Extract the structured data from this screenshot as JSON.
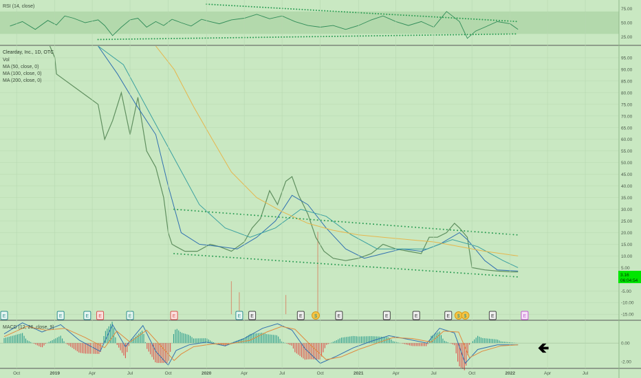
{
  "chart_data": [
    {
      "pane": "rsi",
      "type": "line",
      "title": "RSI (14, close)",
      "ylim": [
        12,
        88
      ],
      "y_ticks": [
        "75.00",
        "50.00",
        "25.00"
      ],
      "y_tick_values": [
        75,
        50,
        25
      ],
      "band": [
        30,
        70
      ],
      "series": [
        {
          "color": "#2e8b57",
          "x": [
            "2018-09-15",
            "2018-10-15",
            "2018-11-15",
            "2018-12-15",
            "2019-01-05",
            "2019-01-25",
            "2019-02-15",
            "2019-03-15",
            "2019-04-15",
            "2019-05-01",
            "2019-05-20",
            "2019-06-10",
            "2019-07-01",
            "2019-07-20",
            "2019-08-10",
            "2019-09-01",
            "2019-09-20",
            "2019-10-10",
            "2019-11-01",
            "2019-11-25",
            "2019-12-20",
            "2020-01-10",
            "2020-02-01",
            "2020-03-01",
            "2020-04-01",
            "2020-05-01",
            "2020-06-01",
            "2020-07-01",
            "2020-08-01",
            "2020-09-01",
            "2020-10-01",
            "2020-11-01",
            "2020-12-01",
            "2021-01-01",
            "2021-02-01",
            "2021-03-01",
            "2021-04-01",
            "2021-05-01",
            "2021-06-01",
            "2021-07-01",
            "2021-08-01",
            "2021-09-01",
            "2021-09-20",
            "2021-10-10",
            "2021-11-01",
            "2021-12-01",
            "2022-01-01",
            "2022-01-20"
          ],
          "values": [
            44,
            52,
            38,
            54,
            46,
            62,
            58,
            50,
            55,
            45,
            27,
            42,
            55,
            58,
            42,
            52,
            45,
            56,
            50,
            44,
            56,
            52,
            48,
            55,
            58,
            65,
            57,
            62,
            52,
            45,
            42,
            45,
            38,
            45,
            55,
            62,
            52,
            45,
            52,
            42,
            70,
            52,
            22,
            35,
            42,
            52,
            48,
            38
          ]
        }
      ],
      "annotations": [
        {
          "type": "dotted-trendline",
          "points": [
            [
              "2020-01-01",
              83
            ],
            [
              "2022-01-20",
              52
            ]
          ]
        },
        {
          "type": "dotted-trendline",
          "points": [
            [
              "2019-04-15",
              20
            ],
            [
              "2022-01-20",
              30
            ]
          ]
        }
      ]
    },
    {
      "pane": "price",
      "type": "line",
      "title": "Clearday, Inc., 1D, OTC",
      "legend": [
        "Vol",
        "MA (50, close, 0)",
        "MA (100, close, 0)",
        "MA (200, close, 0)"
      ],
      "ylim": [
        -17,
        100
      ],
      "y_ticks": [
        "95.00",
        "90.00",
        "85.00",
        "80.00",
        "75.00",
        "70.00",
        "65.00",
        "60.00",
        "55.00",
        "50.00",
        "45.00",
        "40.00",
        "35.00",
        "30.00",
        "25.00",
        "20.00",
        "15.00",
        "10.00",
        "5.00",
        "-5.00",
        "-10.00",
        "-15.00"
      ],
      "y_tick_values": [
        95,
        90,
        85,
        80,
        75,
        70,
        65,
        60,
        55,
        50,
        45,
        40,
        35,
        30,
        25,
        20,
        15,
        10,
        5,
        -5,
        -10,
        -15
      ],
      "last_price_label": "3.16",
      "countdown_label": "06:04:54",
      "last_price": 3.16,
      "series": [
        {
          "name": "Clearday, Inc.",
          "color": "#5f8f5f",
          "x": [
            "2018-12-20",
            "2019-01-01",
            "2019-01-05",
            "2019-04-15",
            "2019-05-01",
            "2019-05-20",
            "2019-06-10",
            "2019-07-01",
            "2019-07-20",
            "2019-08-10",
            "2019-09-01",
            "2019-09-20",
            "2019-10-01",
            "2019-10-10",
            "2019-10-20",
            "2019-11-10",
            "2019-12-10",
            "2020-01-10",
            "2020-02-01",
            "2020-03-01",
            "2020-04-01",
            "2020-04-20",
            "2020-05-10",
            "2020-06-01",
            "2020-06-20",
            "2020-07-10",
            "2020-07-25",
            "2020-08-10",
            "2020-09-01",
            "2020-09-20",
            "2020-10-10",
            "2020-11-01",
            "2020-12-01",
            "2021-01-01",
            "2021-02-01",
            "2021-03-01",
            "2021-04-01",
            "2021-05-01",
            "2021-06-01",
            "2021-06-20",
            "2021-07-10",
            "2021-08-01",
            "2021-08-20",
            "2021-09-01",
            "2021-09-20",
            "2021-10-01",
            "2021-11-01",
            "2021-12-01",
            "2022-01-01",
            "2022-01-20"
          ],
          "values": [
            100,
            95,
            88,
            75,
            60,
            68,
            80,
            62,
            78,
            55,
            48,
            35,
            20,
            15,
            14,
            12,
            12,
            15,
            14,
            12,
            16,
            22,
            26,
            38,
            32,
            42,
            44,
            36,
            28,
            18,
            12,
            9,
            8,
            9,
            11,
            15,
            13,
            12,
            11,
            18,
            18,
            20,
            24,
            22,
            18,
            5,
            4,
            3.5,
            3.2,
            3.16
          ]
        },
        {
          "name": "MA (50, close, 0)",
          "color": "#2f6fb0",
          "x": [
            "2019-04-15",
            "2019-06-01",
            "2019-07-15",
            "2019-09-01",
            "2019-10-01",
            "2019-11-01",
            "2019-12-15",
            "2020-02-01",
            "2020-03-15",
            "2020-05-01",
            "2020-06-15",
            "2020-07-25",
            "2020-09-01",
            "2020-10-15",
            "2020-12-01",
            "2021-01-15",
            "2021-03-01",
            "2021-04-15",
            "2021-06-01",
            "2021-07-15",
            "2021-09-01",
            "2021-09-20",
            "2021-11-01",
            "2021-12-01",
            "2022-01-20"
          ],
          "values": [
            100,
            88,
            75,
            62,
            40,
            20,
            15,
            14,
            13,
            18,
            25,
            36,
            32,
            22,
            13,
            9,
            11,
            13,
            12,
            15,
            20,
            17,
            8,
            4,
            3.5
          ]
        },
        {
          "name": "MA (100, close, 0)",
          "color": "#3aa0a0",
          "x": [
            "2019-04-15",
            "2019-06-15",
            "2019-08-15",
            "2019-10-15",
            "2019-12-15",
            "2020-02-15",
            "2020-04-15",
            "2020-06-15",
            "2020-08-15",
            "2020-10-15",
            "2020-12-15",
            "2021-02-15",
            "2021-04-15",
            "2021-06-15",
            "2021-08-15",
            "2021-10-15",
            "2021-12-15",
            "2022-01-20"
          ],
          "values": [
            100,
            92,
            72,
            52,
            32,
            22,
            18,
            22,
            30,
            27,
            19,
            13,
            13,
            13,
            17,
            14,
            8,
            5
          ]
        },
        {
          "name": "MA (200, close, 0)",
          "color": "#e6b64c",
          "x": [
            "2019-09-01",
            "2019-10-15",
            "2019-12-01",
            "2020-01-15",
            "2020-03-01",
            "2020-05-01",
            "2020-07-01",
            "2020-09-01",
            "2020-11-01",
            "2021-01-01",
            "2021-03-01",
            "2021-05-01",
            "2021-07-01",
            "2021-09-01",
            "2021-11-01",
            "2022-01-20"
          ],
          "values": [
            100,
            90,
            74,
            60,
            46,
            35,
            29,
            24,
            21,
            19,
            18,
            17,
            16,
            14,
            12,
            10
          ]
        }
      ],
      "annotations": [
        {
          "type": "dotted-trendline",
          "points": [
            [
              "2019-10-15",
              30
            ],
            [
              "2022-01-20",
              19
            ]
          ]
        },
        {
          "type": "dotted-trendline",
          "points": [
            [
              "2019-10-15",
              11
            ],
            [
              "2022-01-20",
              1
            ]
          ]
        }
      ],
      "volume_spikes": [
        {
          "x": "2020-03-01",
          "value": 60
        },
        {
          "x": "2020-03-20",
          "value": 40
        },
        {
          "x": "2020-07-10",
          "value": 35
        },
        {
          "x": "2020-09-25",
          "value": 150
        }
      ],
      "event_markers": [
        {
          "x": "2018-09-01",
          "label": "E",
          "kind": "earnings"
        },
        {
          "x": "2019-01-15",
          "label": "E",
          "kind": "earnings"
        },
        {
          "x": "2019-03-20",
          "label": "E",
          "kind": "earnings"
        },
        {
          "x": "2019-04-20",
          "label": "E",
          "kind": "earnings-red"
        },
        {
          "x": "2019-07-01",
          "label": "E",
          "kind": "earnings"
        },
        {
          "x": "2019-10-15",
          "label": "E",
          "kind": "earnings-red"
        },
        {
          "x": "2020-03-20",
          "label": "E",
          "kind": "earnings"
        },
        {
          "x": "2020-04-20",
          "label": "E",
          "kind": "earnings-dark"
        },
        {
          "x": "2020-08-15",
          "label": "E",
          "kind": "earnings-dark"
        },
        {
          "x": "2020-09-20",
          "label": "$",
          "kind": "dividend"
        },
        {
          "x": "2020-11-15",
          "label": "E",
          "kind": "earnings-dark"
        },
        {
          "x": "2021-03-10",
          "label": "E",
          "kind": "earnings-dark"
        },
        {
          "x": "2021-05-20",
          "label": "E",
          "kind": "earnings-dark"
        },
        {
          "x": "2021-08-05",
          "label": "E",
          "kind": "earnings-dark"
        },
        {
          "x": "2021-08-30",
          "label": "$",
          "kind": "dividend"
        },
        {
          "x": "2021-09-15",
          "label": "$",
          "kind": "dividend"
        },
        {
          "x": "2021-11-20",
          "label": "E",
          "kind": "earnings-dark"
        },
        {
          "x": "2022-02-05",
          "label": "E",
          "kind": "earnings-pink"
        }
      ]
    },
    {
      "pane": "macd",
      "type": "line",
      "title": "MACD (12, 26, close, 9)",
      "ylim": [
        -2.6,
        2.4
      ],
      "y_ticks": [
        "0.00",
        "-2.00"
      ],
      "y_tick_values": [
        0,
        -2
      ],
      "series": [
        {
          "color": "#2f6fb0",
          "x": [
            "2018-09-01",
            "2018-10-15",
            "2018-12-01",
            "2019-01-15",
            "2019-03-01",
            "2019-04-20",
            "2019-05-20",
            "2019-06-20",
            "2019-08-01",
            "2019-09-01",
            "2019-10-01",
            "2019-10-20",
            "2019-11-20",
            "2020-01-01",
            "2020-02-15",
            "2020-04-01",
            "2020-05-15",
            "2020-06-20",
            "2020-07-25",
            "2020-08-25",
            "2020-10-01",
            "2020-11-10",
            "2020-12-20",
            "2021-02-01",
            "2021-03-15",
            "2021-05-01",
            "2021-06-15",
            "2021-07-15",
            "2021-08-20",
            "2021-09-15",
            "2021-10-15",
            "2021-12-01",
            "2022-01-20"
          ],
          "values": [
            1.0,
            2.2,
            1.2,
            2.0,
            0.3,
            -0.9,
            2.0,
            -0.4,
            1.9,
            -0.9,
            -2.4,
            -0.8,
            -0.2,
            0.1,
            -0.3,
            0.5,
            1.6,
            2.1,
            1.4,
            -0.6,
            -2.2,
            -1.4,
            -0.5,
            0.2,
            0.8,
            0.4,
            0.0,
            1.6,
            1.1,
            -2.2,
            -0.7,
            -0.2,
            -0.2
          ]
        },
        {
          "color": "#e08a3c",
          "x": [
            "2018-09-01",
            "2018-10-25",
            "2018-12-10",
            "2019-01-25",
            "2019-03-15",
            "2019-05-01",
            "2019-05-30",
            "2019-07-01",
            "2019-08-10",
            "2019-09-15",
            "2019-10-15",
            "2019-11-01",
            "2019-12-01",
            "2020-01-15",
            "2020-02-25",
            "2020-04-15",
            "2020-05-25",
            "2020-06-30",
            "2020-08-01",
            "2020-09-05",
            "2020-10-15",
            "2020-11-20",
            "2021-01-01",
            "2021-02-15",
            "2021-03-25",
            "2021-05-10",
            "2021-06-25",
            "2021-07-25",
            "2021-08-30",
            "2021-09-25",
            "2021-10-25",
            "2021-12-10",
            "2022-01-20"
          ],
          "values": [
            0.7,
            1.8,
            1.4,
            1.6,
            0.6,
            -0.5,
            1.3,
            0.1,
            1.4,
            -0.4,
            -1.9,
            -1.2,
            -0.4,
            -0.1,
            -0.1,
            0.3,
            1.2,
            1.8,
            1.5,
            -0.1,
            -1.8,
            -1.5,
            -0.7,
            0.0,
            0.6,
            0.5,
            0.1,
            1.3,
            1.2,
            -1.6,
            -0.9,
            -0.3,
            -0.2
          ]
        }
      ],
      "cursor_glyph": "🡸"
    }
  ],
  "time_axis": {
    "labels": [
      "Oct",
      "2019",
      "Apr",
      "Jul",
      "Oct",
      "2020",
      "Apr",
      "Jul",
      "Oct",
      "2021",
      "Apr",
      "Jul",
      "Oct",
      "2022",
      "Apr",
      "Jul"
    ],
    "label_dates": [
      "2018-10-01",
      "2019-01-01",
      "2019-04-01",
      "2019-07-01",
      "2019-10-01",
      "2020-01-01",
      "2020-04-01",
      "2020-07-01",
      "2020-10-01",
      "2021-01-01",
      "2021-04-01",
      "2021-07-01",
      "2021-10-01",
      "2022-01-01",
      "2022-04-01",
      "2022-07-01"
    ],
    "range": [
      "2018-08-22",
      "2022-09-20"
    ]
  },
  "colors": {
    "background": "#c9e8c2",
    "rsi_band": "#b3d9ac",
    "grid": "#b7d8b0",
    "separator": "#555555",
    "axis_text": "#4a5a4a",
    "dotted_line": "#2e9e55",
    "price_label_bg": "#00e600",
    "hist_up": "#2e9e8e",
    "hist_down": "#e0504a",
    "candle_up": "#5f8f5f",
    "candle_down": "#d9534f",
    "volume": "#d97b5c"
  }
}
